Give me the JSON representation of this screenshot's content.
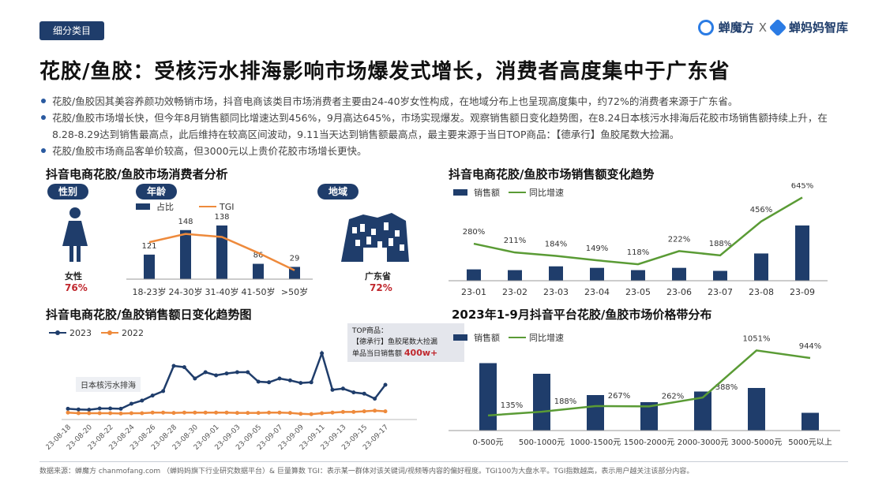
{
  "header": {
    "tag": "细分类目",
    "brand_left": "蝉魔方",
    "brand_x": "X",
    "brand_right": "蝉妈妈智库"
  },
  "title": "花胶/鱼胶：受核污水排海影响市场爆发式增长，消费者高度集中于广东省",
  "bullets": [
    "花胶/鱼胶因其美容养颜功效畅销市场，抖音电商该类目市场消费者主要由24-40岁女性构成，在地域分布上也呈现高度集中，约72%的消费者来源于广东省。",
    "花胶/鱼胶市场增长快，但今年8月销售额同比增速达到456%，9月高达645%，市场实现爆发。观察销售额日变化趋势图，在8.24日本核污水排海后花胶市场销售额持续上升，在8.28-8.29达到销售最高点，此后维持在较高区间波动，9.11当天达到销售额最高点，最主要来源于当日TOP商品：【德承行】鱼胶尾数大捡漏。",
    "花胶/鱼胶市场商品客单价较高，但3000元以上贵价花胶市场增长更快。"
  ],
  "consumer": {
    "title": "抖音电商花胶/鱼胶市场消费者分析",
    "gender_pill": "性别",
    "age_pill": "年龄",
    "region_pill": "地域",
    "gender_label": "女性",
    "gender_value": "76%",
    "region_label": "广东省",
    "region_value": "72%",
    "legend_share": "占比",
    "legend_tgi": "TGI"
  },
  "monthly": {
    "title": "抖音电商花胶/鱼胶市场销售额变化趋势",
    "legend_sales": "销售额",
    "legend_growth": "同比增速"
  },
  "daily": {
    "title": "抖音电商花胶/鱼胶销售额日变化趋势图",
    "legend_2023": "2023",
    "legend_2022": "2022",
    "annotation_event": "日本核污水排海",
    "top_label": "TOP商品：",
    "top_product": "【德承行】鱼胶尾数大捡漏",
    "top_sales_label": "单品当日销售额",
    "top_sales_value": "400w+"
  },
  "price": {
    "title": "2023年1-9月抖音平台花胶/鱼胶市场价格带分布",
    "legend_sales": "销售额",
    "legend_growth": "同比增速"
  },
  "footer": "数据来源：蝉魔方 chanmofang.com （蝉妈妈旗下行业研究数据平台）& 巨量算数 TGI：表示某一群体对该关键词/视频等内容的偏好程度。TGI100为大盘水平。TGI指数越高，表示用户越关注该部分内容。",
  "colors": {
    "navy": "#1f3d6b",
    "orange": "#ee8a3c",
    "green": "#5a9b35",
    "red": "#c0272d"
  },
  "chart_data": [
    {
      "id": "age",
      "type": "bar",
      "categories": [
        "18-23岁",
        "24-30岁",
        "31-40岁",
        "41-50岁",
        ">50岁"
      ],
      "series": [
        {
          "name": "占比",
          "values": [
            0.08,
            0.16,
            0.175,
            0.05,
            0.04
          ]
        },
        {
          "name": "TGI",
          "values": [
            121,
            148,
            138,
            86,
            29
          ]
        }
      ],
      "data_labels": [
        "121",
        "148",
        "138",
        "86",
        "29"
      ]
    },
    {
      "id": "monthly",
      "type": "bar",
      "categories": [
        "23-01",
        "23-02",
        "23-03",
        "23-04",
        "23-05",
        "23-06",
        "23-07",
        "23-08",
        "23-09"
      ],
      "series": [
        {
          "name": "销售额",
          "values": [
            1.5,
            1.4,
            1.9,
            1.7,
            1.4,
            1.7,
            1.3,
            3.6,
            7.3
          ]
        },
        {
          "name": "同比增速",
          "values": [
            280,
            211,
            184,
            149,
            118,
            222,
            188,
            456,
            645
          ]
        }
      ],
      "data_labels": [
        "280%",
        "211%",
        "184%",
        "149%",
        "118%",
        "222%",
        "188%",
        "456%",
        "645%"
      ]
    },
    {
      "id": "daily",
      "type": "line",
      "x": [
        "23-08-18",
        "23-08-19",
        "23-08-20",
        "23-08-21",
        "23-08-22",
        "23-08-23",
        "23-08-24",
        "23-08-25",
        "23-08-26",
        "23-08-27",
        "23-08-28",
        "23-08-29",
        "23-08-30",
        "23-08-31",
        "23-09-01",
        "23-09-02",
        "23-09-03",
        "23-09-04",
        "23-09-05",
        "23-09-06",
        "23-09-07",
        "23-09-08",
        "23-09-09",
        "23-09-10",
        "23-09-11",
        "23-09-12",
        "23-09-13",
        "23-09-14",
        "23-09-15",
        "23-09-16",
        "23-09-17"
      ],
      "tick_labels": [
        "23-08-18",
        "23-08-20",
        "23-08-22",
        "23-08-24",
        "23-08-26",
        "23-08-28",
        "23-08-30",
        "23-09-01",
        "23-09-03",
        "23-09-05",
        "23-09-07",
        "23-09-09",
        "23-09-11",
        "23-09-13",
        "23-09-15",
        "23-09-17"
      ],
      "series": [
        {
          "name": "2023",
          "values": [
            12,
            11,
            10.5,
            12.5,
            12.5,
            12,
            20,
            25,
            33,
            40,
            80,
            78,
            60,
            70,
            65,
            68,
            70,
            70,
            55,
            54,
            60,
            57,
            53,
            54,
            100,
            42,
            44,
            38,
            36,
            28,
            50
          ]
        },
        {
          "name": "2022",
          "values": [
            6,
            5,
            5,
            5,
            5,
            4.5,
            5,
            5,
            6,
            6,
            5.5,
            6,
            6,
            6,
            6,
            6,
            5.5,
            5.5,
            5.5,
            6,
            6,
            5.5,
            4,
            3.5,
            5,
            6,
            7,
            7,
            8,
            9,
            8
          ]
        }
      ]
    },
    {
      "id": "price",
      "type": "bar",
      "categories": [
        "0-500元",
        "500-1000元",
        "1000-1500元",
        "1500-2000元",
        "2000-3000元",
        "3000-5000元",
        "5000元以上"
      ],
      "series": [
        {
          "name": "销售额",
          "values": [
            9.5,
            8,
            5,
            4,
            5.5,
            6,
            2.5
          ]
        },
        {
          "name": "同比增速",
          "values": [
            135,
            188,
            267,
            262,
            388,
            1051,
            944
          ]
        }
      ],
      "data_labels": [
        "135%",
        "188%",
        "267%",
        "262%",
        "388%",
        "1051%",
        "944%"
      ]
    }
  ]
}
